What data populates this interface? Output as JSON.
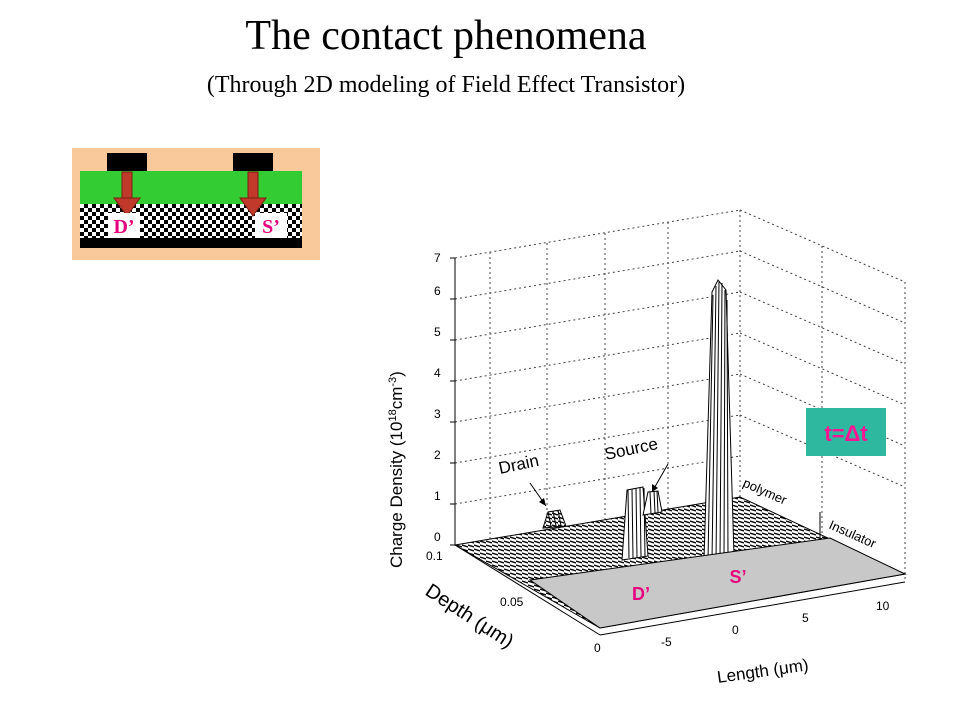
{
  "title": "The contact phenomena",
  "subtitle": "(Through 2D modeling  of Field Effect Transistor)",
  "inset": {
    "drain_label": "D’",
    "source_label": "S’"
  },
  "plot": {
    "z_axis_label": "Charge Density (10",
    "z_axis_sup1": "18",
    "z_axis_unit": "cm",
    "z_axis_sup2": "-3",
    "z_axis_close": ")",
    "z_ticks": [
      "0",
      "1",
      "2",
      "3",
      "4",
      "5",
      "6",
      "7"
    ],
    "depth_label": "Depth (μm)",
    "depth_ticks": [
      "0.1",
      "0.05",
      "0"
    ],
    "length_label": "Length (μm)",
    "length_ticks": [
      "-5",
      "0",
      "5",
      "10"
    ],
    "drain_annotation": "Drain",
    "source_annotation": "Source",
    "polymer_label": "polymer",
    "insulator_label": "Insulator",
    "plane_drain": "D’",
    "plane_source": "S’",
    "time_badge": "t=Δt"
  },
  "colors": {
    "accent_magenta": "#e6007e",
    "inset_bg": "#f9c99c",
    "inset_green": "#33cc33",
    "arrow_red": "#c0392b",
    "badge_bg": "#2eb8a0",
    "badge_text": "#ff1493"
  }
}
